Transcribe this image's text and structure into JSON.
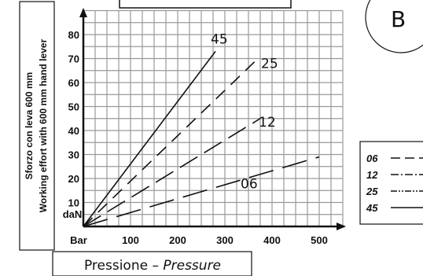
{
  "badge": "B",
  "chart_data": {
    "type": "line",
    "xlabel": {
      "main": "Pressione – ",
      "italic": "Pressure"
    },
    "ylabel_line1": "Sforzo con leva 600 mm",
    "ylabel_line2": "Working effort with 600 mm hand lever",
    "x_unit": "Bar",
    "y_unit": "daN",
    "xlim": [
      0,
      550
    ],
    "ylim": [
      0,
      90
    ],
    "x_ticks": [
      100,
      200,
      300,
      400,
      500
    ],
    "y_ticks": [
      10,
      20,
      30,
      40,
      50,
      60,
      70,
      80
    ],
    "grid": true,
    "series": [
      {
        "name": "45",
        "dash": "solid",
        "points": [
          [
            0,
            0
          ],
          [
            280,
            73
          ]
        ]
      },
      {
        "name": "25",
        "dash": "dash",
        "points": [
          [
            0,
            0
          ],
          [
            370,
            70
          ]
        ]
      },
      {
        "name": "12",
        "dash": "longdash",
        "points": [
          [
            0,
            0
          ],
          [
            375,
            45
          ]
        ]
      },
      {
        "name": "06",
        "dash": "longdash2",
        "points": [
          [
            0,
            0
          ],
          [
            500,
            29
          ]
        ]
      }
    ],
    "legend": {
      "position": "right",
      "entries": [
        {
          "code": "06",
          "style": "longdash"
        },
        {
          "code": "12",
          "style": "dashdot"
        },
        {
          "code": "25",
          "style": "dashdotdot"
        },
        {
          "code": "45",
          "style": "solid"
        }
      ]
    }
  }
}
